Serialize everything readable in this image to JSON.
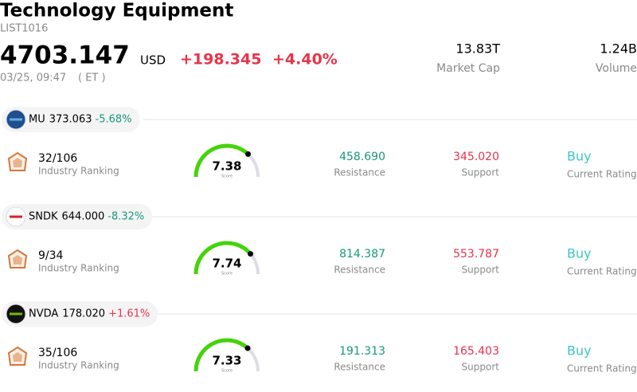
{
  "header": {
    "title": "Technology Equipment",
    "code": "LIST1016",
    "price": "4703.147",
    "currency": "USD",
    "change": "+198.345",
    "change_pct": "+4.40%",
    "change_color": "#e8344a",
    "time": "03/25, 09:47",
    "timezone": "( ET )",
    "market_cap": "13.83T",
    "market_cap_label": "Market Cap",
    "volume": "1.24B",
    "volume_label": "Volume"
  },
  "score_range": [
    0,
    10
  ],
  "stocks": [
    {
      "ticker": "MU",
      "price": "373.063",
      "change": "-5.68%",
      "change_color": "#15997a",
      "ranking": "32/106",
      "ranking_label": "Industry Ranking",
      "score": 7.38,
      "score_label": "Score",
      "resistance": "458.690",
      "resistance_label": "Resistance",
      "support": "345.020",
      "support_label": "Support",
      "rating": "Buy",
      "rating_label": "Current Rating"
    },
    {
      "ticker": "SNDK",
      "price": "644.000",
      "change": "-8.32%",
      "change_color": "#15997a",
      "ranking": "9/34",
      "ranking_label": "Industry Ranking",
      "score": 7.74,
      "score_label": "Score",
      "resistance": "814.387",
      "resistance_label": "Resistance",
      "support": "553.787",
      "support_label": "Support",
      "rating": "Buy",
      "rating_label": "Current Rating"
    },
    {
      "ticker": "NVDA",
      "price": "178.020",
      "change": "+1.61%",
      "change_color": "#e8344a",
      "ranking": "35/106",
      "ranking_label": "Industry Ranking",
      "score": 7.33,
      "score_label": "Score",
      "resistance": "191.313",
      "resistance_label": "Resistance",
      "support": "165.403",
      "support_label": "Support",
      "rating": "Buy",
      "rating_label": "Current Rating"
    }
  ]
}
